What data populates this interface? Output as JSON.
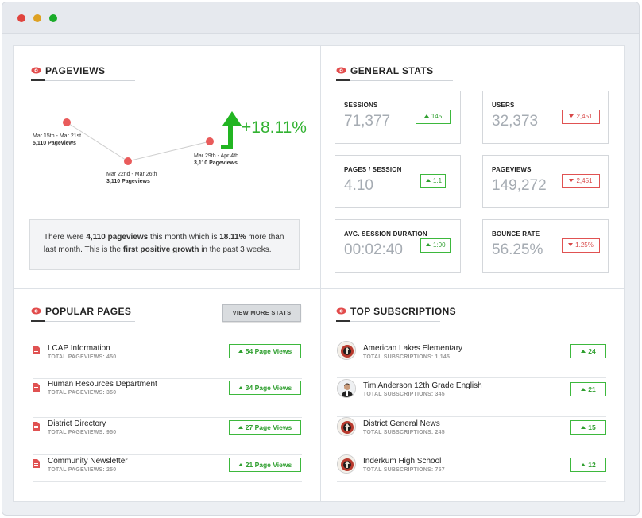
{
  "colors": {
    "accent_green": "#32b232",
    "accent_red": "#e05252",
    "eye_red": "#e24c4c"
  },
  "pageviews": {
    "title": "PAGEVIEWS",
    "points": [
      {
        "range": "Mar 15th - Mar 21st",
        "views": "5,110 Pageviews"
      },
      {
        "range": "Mar 22nd - Mar 26th",
        "views": "3,110 Pageviews"
      },
      {
        "range": "Mar 29th - Apr 4th",
        "views": "3,110 Pageviews"
      }
    ],
    "growth": "+18.11%",
    "summary": {
      "p1": "There were ",
      "b1": "4,110 pageviews",
      "p2": " this month which is ",
      "b2": "18.11%",
      "p3": " more than last month. This is the ",
      "b3": "first positive growth",
      "p4": " in the past 3 weeks."
    }
  },
  "general_stats": {
    "title": "GENERAL STATS",
    "cards": [
      {
        "label": "SESSIONS",
        "value": "71,377",
        "change": "145",
        "direction": "up"
      },
      {
        "label": "USERS",
        "value": "32,373",
        "change": "2,451",
        "direction": "down"
      },
      {
        "label": "PAGES / SESSION",
        "value": "4.10",
        "change": "1.1",
        "direction": "up"
      },
      {
        "label": "PAGEVIEWS",
        "value": "149,272",
        "change": "2,451",
        "direction": "down"
      },
      {
        "label": "AVG. SESSION DURATION",
        "value": "00:02:40",
        "change": "1:00",
        "direction": "up"
      },
      {
        "label": "BOUNCE RATE",
        "value": "56.25%",
        "change": "1.25%",
        "direction": "down"
      }
    ]
  },
  "popular_pages": {
    "title": "POPULAR PAGES",
    "view_more_label": "VIEW MORE STATS",
    "items": [
      {
        "name": "LCAP Information",
        "sub": "TOTAL PAGEVIEWS: 450",
        "badge": "54 Page Views"
      },
      {
        "name": "Human Resources Department",
        "sub": "TOTAL PAGEVIEWS: 350",
        "badge": "34 Page Views"
      },
      {
        "name": "District Directory",
        "sub": "TOTAL PAGEVIEWS: 950",
        "badge": "27 Page Views"
      },
      {
        "name": "Community Newsletter",
        "sub": "TOTAL PAGEVIEWS: 250",
        "badge": "21 Page Views"
      }
    ]
  },
  "top_subscriptions": {
    "title": "TOP SUBSCRIPTIONS",
    "items": [
      {
        "name": "American Lakes Elementary",
        "sub": "TOTAL SUBSCRIPTIONS: 1,145",
        "badge": "24",
        "avatar": "school-logo-icon"
      },
      {
        "name": "Tim Anderson 12th Grade English",
        "sub": "TOTAL SUBSCRIPTIONS: 345",
        "badge": "21",
        "avatar": "person-photo-icon"
      },
      {
        "name": "District General News",
        "sub": "TOTAL SUBSCRIPTIONS: 245",
        "badge": "15",
        "avatar": "school-logo-icon"
      },
      {
        "name": "Inderkum High School",
        "sub": "TOTAL SUBSCRIPTIONS: 757",
        "badge": "12",
        "avatar": "school-logo-icon"
      }
    ]
  }
}
